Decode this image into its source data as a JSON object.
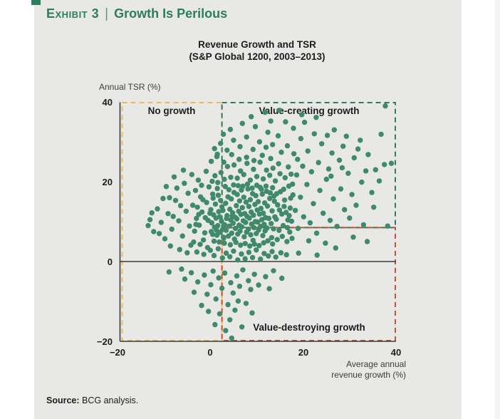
{
  "page": {
    "background": "#ffffff",
    "panel_bg": "#E8E8E7",
    "accent_green": "#2E7D5B"
  },
  "header": {
    "exhibit_label": "Exhibit 3",
    "separator": "|",
    "title": "Growth Is Perilous"
  },
  "footer": {
    "source_label": "Source:",
    "source_text": " BCG analysis."
  },
  "axis": {
    "ylabel": "Annual TSR (%)",
    "xlabel_line1": "Average annual",
    "xlabel_line2": "revenue growth (%)",
    "y_tick_labels": [
      "40",
      "20",
      "0",
      "−20"
    ],
    "x_tick_labels": [
      "−20",
      "0",
      "20",
      "40"
    ]
  },
  "chart_data": {
    "type": "scatter",
    "title": "Revenue Growth and TSR",
    "subtitle": "(S&P Global 1200, 2003–2013)",
    "xlabel": "Average annual revenue growth (%)",
    "ylabel": "Annual TSR (%)",
    "xlim": [
      -20,
      40
    ],
    "ylim": [
      -20,
      40
    ],
    "x_ticks": [
      -20,
      0,
      20,
      40
    ],
    "y_ticks": [
      40,
      20,
      0,
      -20
    ],
    "grid": false,
    "legend": "none",
    "point_color": "#3E8A6B",
    "axis_line_color": "#3b3b3b",
    "quadrants": {
      "growth_threshold_x": 2.5,
      "tsr_threshold_y": 8.5,
      "regions": [
        {
          "id": "no-growth",
          "label": "No growth",
          "color": "#E8BE55"
        },
        {
          "id": "value-creating",
          "label": "Value-creating growth",
          "color": "#2F7B5D"
        },
        {
          "id": "value-destroying",
          "label": "Value-destroying growth",
          "color": "#C7502F"
        }
      ]
    },
    "points": [
      [
        2.1,
        7.3
      ],
      [
        2.4,
        10.1
      ],
      [
        2.7,
        12.8
      ],
      [
        2.9,
        5.9
      ],
      [
        3.1,
        9.2
      ],
      [
        3.3,
        14.6
      ],
      [
        3.4,
        7.8
      ],
      [
        3.6,
        11.5
      ],
      [
        3.8,
        16.2
      ],
      [
        3.9,
        6.4
      ],
      [
        4.1,
        8.9
      ],
      [
        4.2,
        13.1
      ],
      [
        4.4,
        10.4
      ],
      [
        4.5,
        15.7
      ],
      [
        4.6,
        7.1
      ],
      [
        4.8,
        12.2
      ],
      [
        4.9,
        9.6
      ],
      [
        5.1,
        17.3
      ],
      [
        5.2,
        5.6
      ],
      [
        5.3,
        11.1
      ],
      [
        5.4,
        8.3
      ],
      [
        5.6,
        14.0
      ],
      [
        5.7,
        10.7
      ],
      [
        5.8,
        16.8
      ],
      [
        5.9,
        6.9
      ],
      [
        6.1,
        12.6
      ],
      [
        6.2,
        9.1
      ],
      [
        6.3,
        15.2
      ],
      [
        6.4,
        7.6
      ],
      [
        6.6,
        11.8
      ],
      [
        6.7,
        17.9
      ],
      [
        6.8,
        8.7
      ],
      [
        6.9,
        13.5
      ],
      [
        7.1,
        10.2
      ],
      [
        7.2,
        16.1
      ],
      [
        7.3,
        6.2
      ],
      [
        7.4,
        12.0
      ],
      [
        7.6,
        9.8
      ],
      [
        7.7,
        14.9
      ],
      [
        7.8,
        7.4
      ],
      [
        7.9,
        11.3
      ],
      [
        8.1,
        18.2
      ],
      [
        8.2,
        8.1
      ],
      [
        8.3,
        13.8
      ],
      [
        8.4,
        10.9
      ],
      [
        8.6,
        15.5
      ],
      [
        8.7,
        6.7
      ],
      [
        8.8,
        12.4
      ],
      [
        8.9,
        9.4
      ],
      [
        9.1,
        17.0
      ],
      [
        9.2,
        5.3
      ],
      [
        9.3,
        11.6
      ],
      [
        9.4,
        8.5
      ],
      [
        9.6,
        14.3
      ],
      [
        9.7,
        10.0
      ],
      [
        9.8,
        16.5
      ],
      [
        9.9,
        7.0
      ],
      [
        10.1,
        12.9
      ],
      [
        10.2,
        9.9
      ],
      [
        10.3,
        15.0
      ],
      [
        10.4,
        7.9
      ],
      [
        10.6,
        11.9
      ],
      [
        10.7,
        18.6
      ],
      [
        10.8,
        8.8
      ],
      [
        10.9,
        13.3
      ],
      [
        11.1,
        10.5
      ],
      [
        11.2,
        16.9
      ],
      [
        11.3,
        6.5
      ],
      [
        11.4,
        12.1
      ],
      [
        11.6,
        9.3
      ],
      [
        11.7,
        14.7
      ],
      [
        11.8,
        7.7
      ],
      [
        11.9,
        11.0
      ],
      [
        12.1,
        17.6
      ],
      [
        12.2,
        8.4
      ],
      [
        12.3,
        13.9
      ],
      [
        12.6,
        10.8
      ],
      [
        12.8,
        15.8
      ],
      [
        1.6,
        9.0
      ],
      [
        1.8,
        12.5
      ],
      [
        1.4,
        6.6
      ],
      [
        1.2,
        10.9
      ],
      [
        2.2,
        15.3
      ],
      [
        2.6,
        8.0
      ],
      [
        3.2,
        18.8
      ],
      [
        4.0,
        18.0
      ],
      [
        5.0,
        19.2
      ],
      [
        6.0,
        19.0
      ],
      [
        7.0,
        18.9
      ],
      [
        8.0,
        19.4
      ],
      [
        9.0,
        18.4
      ],
      [
        10.0,
        19.1
      ],
      [
        11.0,
        18.1
      ],
      [
        12.0,
        18.9
      ],
      [
        3.0,
        4.6
      ],
      [
        4.3,
        4.2
      ],
      [
        5.5,
        4.8
      ],
      [
        6.5,
        4.1
      ],
      [
        7.5,
        4.5
      ],
      [
        8.5,
        3.9
      ],
      [
        9.5,
        4.4
      ],
      [
        10.5,
        4.0
      ],
      [
        11.5,
        4.7
      ],
      [
        12.4,
        5.2
      ],
      [
        1.9,
        4.9
      ],
      [
        2.8,
        6.1
      ],
      [
        13.1,
        9.5
      ],
      [
        13.3,
        12.7
      ],
      [
        13.6,
        8.2
      ],
      [
        13.8,
        15.1
      ],
      [
        13.2,
        6.0
      ],
      [
        13.9,
        11.2
      ],
      [
        0.9,
        8.6
      ],
      [
        0.7,
        11.7
      ],
      [
        0.5,
        6.8
      ],
      [
        0.3,
        9.7
      ],
      [
        0.1,
        13.0
      ],
      [
        1.1,
        14.4
      ],
      [
        1.3,
        7.9
      ],
      [
        1.7,
        16.6
      ],
      [
        0.8,
        5.1
      ],
      [
        1.5,
        18.3
      ],
      [
        12.9,
        17.2
      ],
      [
        13.4,
        18.5
      ],
      [
        0.6,
        15.9
      ],
      [
        0.2,
        7.5
      ],
      [
        2.0,
        11.2
      ],
      [
        2.5,
        13.7
      ],
      [
        3.5,
        10.8
      ],
      [
        4.7,
        11.4
      ],
      [
        -0.5,
        10.3
      ],
      [
        -1.2,
        7.2
      ],
      [
        -1.8,
        12.4
      ],
      [
        -2.4,
        9.1
      ],
      [
        -0.8,
        14.8
      ],
      [
        -1.5,
        5.4
      ],
      [
        -2.1,
        16.2
      ],
      [
        -0.3,
        18.7
      ],
      [
        -1.1,
        11.0
      ],
      [
        -2.8,
        13.6
      ],
      [
        0.4,
        20.1
      ],
      [
        1.0,
        21.5
      ],
      [
        1.6,
        19.8
      ],
      [
        2.3,
        22.3
      ],
      [
        3.0,
        20.6
      ],
      [
        3.7,
        23.8
      ],
      [
        4.4,
        21.1
      ],
      [
        5.1,
        24.2
      ],
      [
        5.8,
        20.9
      ],
      [
        6.5,
        22.7
      ],
      [
        7.2,
        21.8
      ],
      [
        7.9,
        24.6
      ],
      [
        8.6,
        20.4
      ],
      [
        9.3,
        23.1
      ],
      [
        10.0,
        21.3
      ],
      [
        10.7,
        24.9
      ],
      [
        11.4,
        20.7
      ],
      [
        12.1,
        22.9
      ],
      [
        12.8,
        21.6
      ],
      [
        13.5,
        23.4
      ],
      [
        14.2,
        10.6
      ],
      [
        14.5,
        14.2
      ],
      [
        14.8,
        7.8
      ],
      [
        15.1,
        17.5
      ],
      [
        15.4,
        11.9
      ],
      [
        15.7,
        9.0
      ],
      [
        16.0,
        15.4
      ],
      [
        16.3,
        12.3
      ],
      [
        16.6,
        8.5
      ],
      [
        16.9,
        18.9
      ],
      [
        14.0,
        20.2
      ],
      [
        15.0,
        22.0
      ],
      [
        16.1,
        21.0
      ],
      [
        17.2,
        13.4
      ],
      [
        17.5,
        10.1
      ],
      [
        17.8,
        16.7
      ],
      [
        14.4,
        5.5
      ],
      [
        15.5,
        6.3
      ],
      [
        16.5,
        5.0
      ],
      [
        17.1,
        7.4
      ],
      [
        0.0,
        2.8
      ],
      [
        0.8,
        1.5
      ],
      [
        1.7,
        3.2
      ],
      [
        2.6,
        0.9
      ],
      [
        3.4,
        2.1
      ],
      [
        4.2,
        1.2
      ],
      [
        5.0,
        2.6
      ],
      [
        5.9,
        0.4
      ],
      [
        6.7,
        1.9
      ],
      [
        7.5,
        0.7
      ],
      [
        8.3,
        2.3
      ],
      [
        9.1,
        1.0
      ],
      [
        9.9,
        2.9
      ],
      [
        10.8,
        0.6
      ],
      [
        11.6,
        2.0
      ],
      [
        12.5,
        1.4
      ],
      [
        13.3,
        2.5
      ],
      [
        14.1,
        1.1
      ],
      [
        15.2,
        2.2
      ],
      [
        16.4,
        1.7
      ],
      [
        -0.6,
        3.5
      ],
      [
        -1.4,
        1.8
      ],
      [
        -2.2,
        4.3
      ],
      [
        -3.0,
        10.8
      ],
      [
        -3.4,
        7.6
      ],
      [
        -3.8,
        14.1
      ],
      [
        -3.2,
        17.8
      ],
      [
        -2.6,
        20.4
      ],
      [
        -1.9,
        19.1
      ],
      [
        -0.9,
        22.6
      ],
      [
        0.2,
        25.1
      ],
      [
        1.4,
        26.3
      ],
      [
        2.9,
        24.9
      ],
      [
        4.6,
        26.8
      ],
      [
        6.2,
        25.6
      ],
      [
        7.8,
        26.1
      ],
      [
        9.4,
        25.3
      ],
      [
        11.2,
        26.6
      ],
      [
        13.0,
        25.8
      ],
      [
        14.7,
        24.5
      ],
      [
        17.4,
        21.9
      ],
      [
        17.7,
        19.4
      ],
      [
        -3.6,
        4.9
      ],
      [
        -2.9,
        2.4
      ],
      [
        15.8,
        18.1
      ],
      [
        16.8,
        23.7
      ],
      [
        0.5,
        16.9
      ],
      [
        -0.1,
        12.1
      ],
      [
        13.7,
        16.4
      ],
      [
        14.9,
        12.9
      ],
      [
        17.0,
        11.5
      ],
      [
        17.6,
        5.8
      ],
      [
        -1.6,
        15.5
      ],
      [
        -2.5,
        11.8
      ],
      [
        -3.1,
        9.3
      ],
      [
        14.3,
        17.0
      ],
      [
        15.9,
        13.8
      ],
      [
        16.7,
        10.4
      ],
      [
        17.3,
        15.9
      ],
      [
        13.4,
        4.4
      ],
      [
        -4.5,
        8.9
      ],
      [
        -5.2,
        12.6
      ],
      [
        -6.0,
        6.4
      ],
      [
        -6.8,
        10.2
      ],
      [
        -7.5,
        15.3
      ],
      [
        -8.3,
        8.1
      ],
      [
        -9.1,
        12.0
      ],
      [
        -9.8,
        5.7
      ],
      [
        -10.6,
        9.8
      ],
      [
        -11.4,
        13.2
      ],
      [
        -12.2,
        7.5
      ],
      [
        -13.0,
        10.5
      ],
      [
        -4.8,
        17.1
      ],
      [
        -5.6,
        19.6
      ],
      [
        -6.4,
        14.0
      ],
      [
        -7.2,
        18.4
      ],
      [
        -8.0,
        11.3
      ],
      [
        -8.8,
        16.0
      ],
      [
        -4.2,
        4.1
      ],
      [
        -5.0,
        2.2
      ],
      [
        -6.6,
        3.0
      ],
      [
        -9.5,
        18.8
      ],
      [
        -10.2,
        15.8
      ],
      [
        -12.6,
        12.2
      ],
      [
        -4.0,
        21.8
      ],
      [
        -5.8,
        22.9
      ],
      [
        -7.8,
        21.2
      ],
      [
        -11.0,
        7.0
      ],
      [
        -13.4,
        9.0
      ],
      [
        -8.6,
        3.9
      ],
      [
        0.9,
        28.3
      ],
      [
        2.2,
        29.6
      ],
      [
        3.6,
        27.9
      ],
      [
        5.0,
        30.4
      ],
      [
        6.4,
        28.8
      ],
      [
        7.8,
        31.2
      ],
      [
        9.2,
        28.1
      ],
      [
        10.6,
        30.0
      ],
      [
        12.0,
        28.6
      ],
      [
        13.4,
        29.3
      ],
      [
        4.3,
        33.1
      ],
      [
        6.9,
        34.6
      ],
      [
        9.7,
        33.8
      ],
      [
        12.4,
        32.4
      ],
      [
        8.8,
        36.3
      ],
      [
        13.0,
        35.2
      ],
      [
        2.8,
        31.9
      ],
      [
        1.5,
        26.9
      ],
      [
        15.3,
        27.4
      ],
      [
        16.6,
        29.0
      ],
      [
        18.0,
        27.0
      ],
      [
        19.5,
        30.8
      ],
      [
        21.0,
        27.7
      ],
      [
        14.6,
        31.5
      ],
      [
        17.9,
        33.4
      ],
      [
        20.3,
        34.9
      ],
      [
        11.8,
        37.4
      ],
      [
        18.8,
        25.6
      ],
      [
        22.4,
        32.0
      ],
      [
        24.0,
        29.5
      ],
      [
        18.3,
        12.8
      ],
      [
        18.9,
        8.3
      ],
      [
        19.4,
        16.1
      ],
      [
        20.1,
        11.2
      ],
      [
        20.8,
        19.3
      ],
      [
        21.5,
        9.7
      ],
      [
        22.2,
        14.5
      ],
      [
        22.9,
        7.1
      ],
      [
        23.6,
        17.8
      ],
      [
        24.3,
        12.1
      ],
      [
        25.0,
        20.6
      ],
      [
        25.8,
        10.3
      ],
      [
        26.5,
        15.7
      ],
      [
        27.3,
        8.8
      ],
      [
        28.1,
        18.2
      ],
      [
        28.9,
        13.0
      ],
      [
        29.7,
        22.1
      ],
      [
        30.5,
        16.8
      ],
      [
        18.6,
        21.7
      ],
      [
        19.9,
        23.9
      ],
      [
        21.8,
        22.5
      ],
      [
        23.3,
        24.8
      ],
      [
        25.5,
        23.2
      ],
      [
        27.8,
        25.4
      ],
      [
        30.0,
        10.9
      ],
      [
        31.4,
        14.1
      ],
      [
        32.6,
        19.9
      ],
      [
        24.8,
        4.6
      ],
      [
        27.0,
        3.4
      ],
      [
        21.2,
        5.2
      ],
      [
        19.0,
        2.1
      ],
      [
        23.0,
        1.6
      ],
      [
        26.2,
        27.2
      ],
      [
        28.6,
        28.9
      ],
      [
        31.0,
        26.0
      ],
      [
        33.5,
        22.7
      ],
      [
        34.8,
        17.3
      ],
      [
        30.8,
        6.1
      ],
      [
        33.0,
        9.2
      ],
      [
        25.2,
        31.6
      ],
      [
        0.6,
        -2.4
      ],
      [
        1.8,
        -4.1
      ],
      [
        3.1,
        -2.9
      ],
      [
        4.4,
        -5.3
      ],
      [
        5.7,
        -3.6
      ],
      [
        7.0,
        -2.1
      ],
      [
        8.2,
        -4.8
      ],
      [
        9.5,
        -3.2
      ],
      [
        2.5,
        -6.7
      ],
      [
        4.9,
        -7.9
      ],
      [
        6.3,
        -6.2
      ],
      [
        8.7,
        -7.0
      ],
      [
        1.2,
        -9.4
      ],
      [
        3.8,
        -10.8
      ],
      [
        6.0,
        -9.9
      ],
      [
        0.1,
        -5.8
      ],
      [
        -1.3,
        -3.4
      ],
      [
        -2.7,
        -5.1
      ],
      [
        -4.1,
        -2.8
      ],
      [
        -0.7,
        -8.2
      ],
      [
        2.0,
        -13.1
      ],
      [
        4.2,
        -14.6
      ],
      [
        5.3,
        -12.2
      ],
      [
        3.3,
        -17.3
      ],
      [
        4.6,
        -19.2
      ],
      [
        10.4,
        -5.9
      ],
      [
        11.9,
        -3.8
      ],
      [
        13.6,
        -2.3
      ],
      [
        -1.9,
        -11.0
      ],
      [
        -5.5,
        -4.4
      ],
      [
        12.7,
        -6.8
      ],
      [
        15.4,
        -4.2
      ],
      [
        -3.5,
        -7.7
      ],
      [
        7.7,
        -10.5
      ],
      [
        9.0,
        -12.9
      ],
      [
        -6.2,
        -1.9
      ],
      [
        -8.9,
        -2.6
      ],
      [
        1.0,
        -15.8
      ],
      [
        6.8,
        -16.4
      ],
      [
        -0.4,
        -12.5
      ],
      [
        37.7,
        39.0
      ],
      [
        32.3,
        30.4
      ],
      [
        37.5,
        24.3
      ],
      [
        39.0,
        24.6
      ],
      [
        35.2,
        13.6
      ],
      [
        36.4,
        20.2
      ],
      [
        38.2,
        8.9
      ],
      [
        34.0,
        26.8
      ],
      [
        36.8,
        31.9
      ],
      [
        33.8,
        5.0
      ],
      [
        19.7,
        36.8
      ],
      [
        16.2,
        35.0
      ],
      [
        14.9,
        37.9
      ],
      [
        22.8,
        36.1
      ],
      [
        26.7,
        33.0
      ],
      [
        29.3,
        31.4
      ],
      [
        31.8,
        28.2
      ],
      [
        35.6,
        23.0
      ],
      [
        28.4,
        23.5
      ],
      [
        26.0,
        21.4
      ]
    ]
  }
}
